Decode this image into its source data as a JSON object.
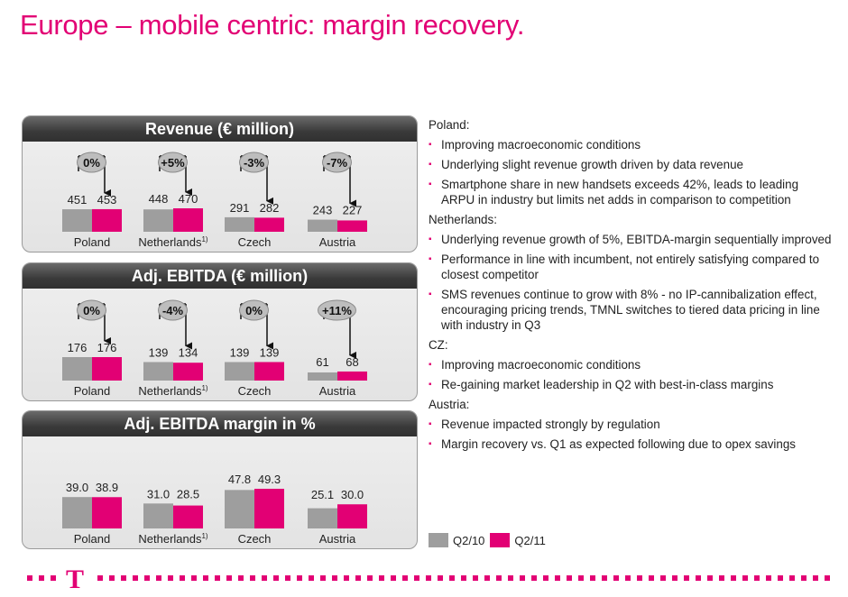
{
  "page": {
    "title": "Europe – mobile centric: margin recovery."
  },
  "colors": {
    "magenta": "#e20074",
    "grey": "#9e9e9e"
  },
  "legend": [
    {
      "label": "Q2/10",
      "color": "#9e9e9e"
    },
    {
      "label": "Q2/11",
      "color": "#e20074"
    }
  ],
  "chart_data": [
    {
      "type": "bar",
      "title": "Revenue (€ million)",
      "categories": [
        "Poland",
        "Netherlands",
        "Czech",
        "Austria"
      ],
      "category_superscripts": [
        "",
        "1)",
        "",
        ""
      ],
      "series": [
        {
          "name": "Q2/10",
          "values": [
            451,
            448,
            291,
            243
          ]
        },
        {
          "name": "Q2/11",
          "values": [
            453,
            470,
            282,
            227
          ]
        }
      ],
      "value_labels": [
        [
          "451",
          "453"
        ],
        [
          "448",
          "470"
        ],
        [
          "291",
          "282"
        ],
        [
          "243",
          "227"
        ]
      ],
      "changes": [
        "0%",
        "+5%",
        "-3%",
        "-7%"
      ]
    },
    {
      "type": "bar",
      "title": "Adj. EBITDA (€ million)",
      "categories": [
        "Poland",
        "Netherlands",
        "Czech",
        "Austria"
      ],
      "category_superscripts": [
        "",
        "1)",
        "",
        ""
      ],
      "series": [
        {
          "name": "Q2/10",
          "values": [
            176,
            139,
            139,
            61
          ]
        },
        {
          "name": "Q2/11",
          "values": [
            176,
            134,
            139,
            68
          ]
        }
      ],
      "value_labels": [
        [
          "176",
          "176"
        ],
        [
          "139",
          "134"
        ],
        [
          "139",
          "139"
        ],
        [
          "61",
          "68"
        ]
      ],
      "changes": [
        "0%",
        "-4%",
        "0%",
        "+11%"
      ]
    },
    {
      "type": "bar",
      "title": "Adj. EBITDA margin in %",
      "categories": [
        "Poland",
        "Netherlands",
        "Czech",
        "Austria"
      ],
      "category_superscripts": [
        "",
        "1)",
        "",
        ""
      ],
      "series": [
        {
          "name": "Q2/10",
          "values": [
            39.0,
            31.0,
            47.8,
            25.1
          ]
        },
        {
          "name": "Q2/11",
          "values": [
            38.9,
            28.5,
            49.3,
            30.0
          ]
        }
      ],
      "value_labels": [
        [
          "39.0",
          "38.9"
        ],
        [
          "31.0",
          "28.5"
        ],
        [
          "47.8",
          "49.3"
        ],
        [
          "25.1",
          "30.0"
        ]
      ],
      "changes": []
    }
  ],
  "commentary": [
    {
      "country": "Poland:",
      "bullets": [
        "Improving macroeconomic conditions",
        "Underlying slight revenue growth driven by data revenue",
        "Smartphone share in new handsets exceeds 42%, leads to leading ARPU in industry but limits net adds in comparison to competition"
      ]
    },
    {
      "country": "Netherlands:",
      "bullets": [
        "Underlying revenue growth of 5%, EBITDA-margin sequentially improved",
        "Performance in line with incumbent, not entirely satisfying compared to closest competitor",
        "SMS revenues continue to grow with 8% - no IP-cannibalization effect, encouraging pricing trends, TMNL switches to tiered data pricing in line with industry in Q3"
      ]
    },
    {
      "country": "CZ:",
      "bullets": [
        "Improving macroeconomic conditions",
        "Re-gaining market leadership in Q2 with best-in-class margins"
      ]
    },
    {
      "country": "Austria:",
      "bullets": [
        "Revenue impacted strongly by regulation",
        "Margin recovery vs. Q1 as expected following due to opex savings"
      ]
    }
  ],
  "footer": {
    "logo_text": "T"
  }
}
